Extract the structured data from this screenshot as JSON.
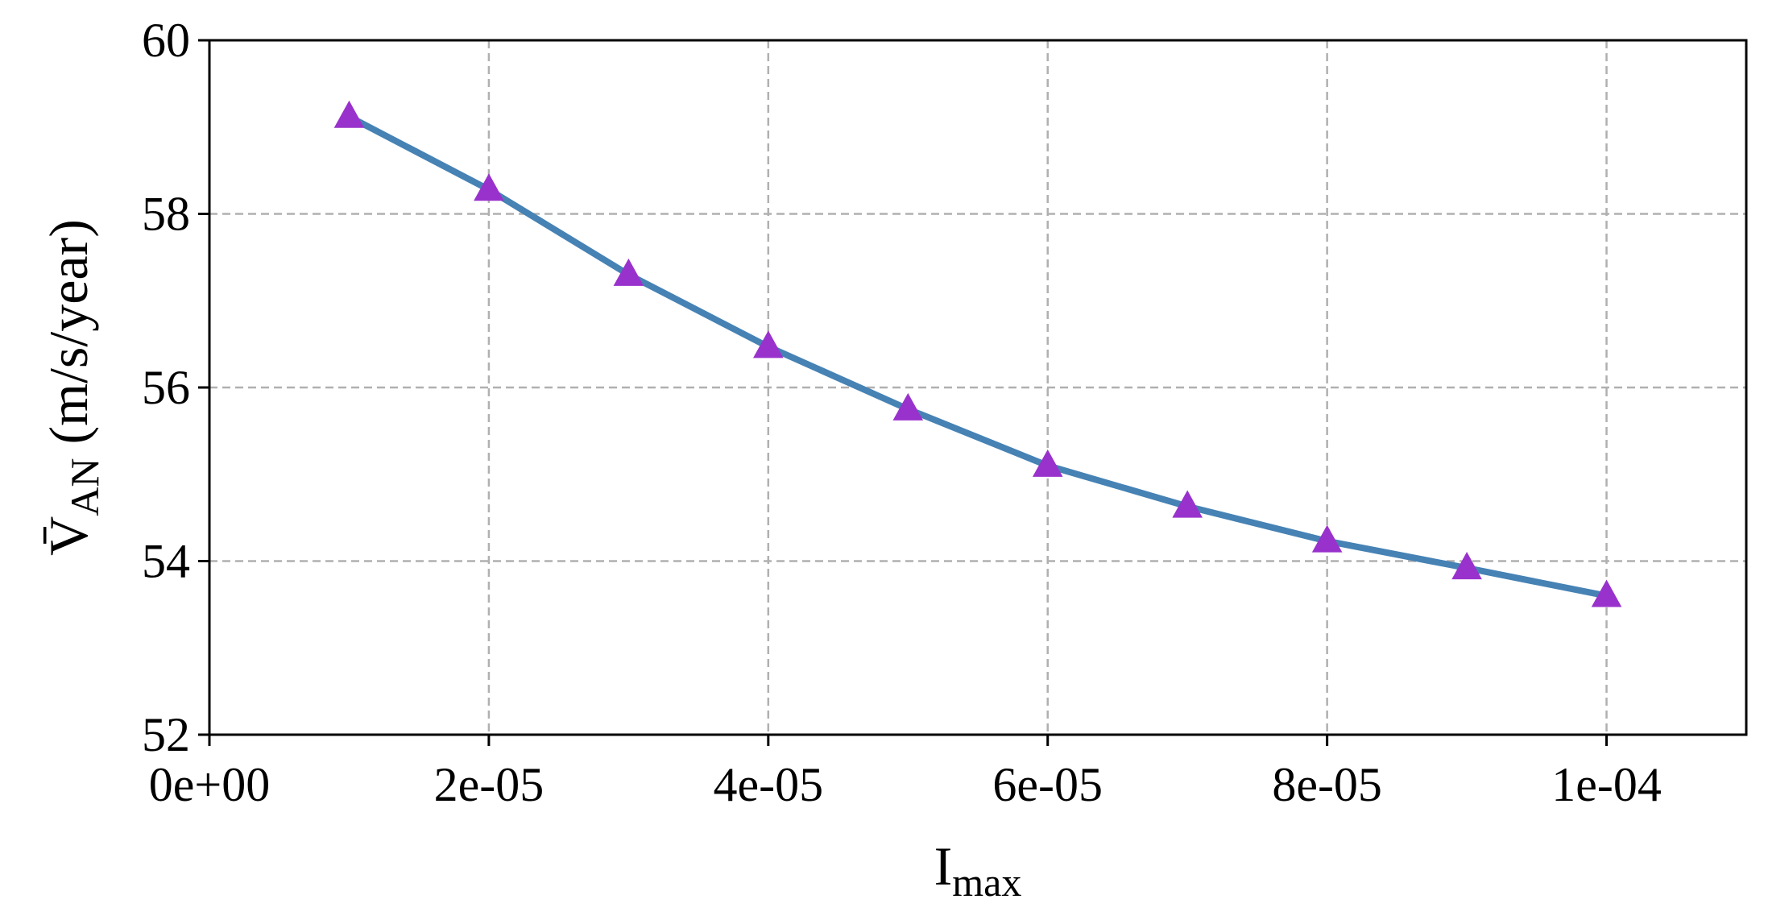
{
  "chart_data": {
    "type": "line",
    "x": [
      1e-05,
      2e-05,
      3e-05,
      4e-05,
      5e-05,
      6e-05,
      7e-05,
      8e-05,
      9e-05,
      0.0001
    ],
    "series": [
      {
        "values": [
          59.12,
          58.28,
          57.3,
          56.47,
          55.75,
          55.1,
          54.63,
          54.23,
          53.92,
          53.6
        ],
        "line_color": "#4682b4",
        "marker": "triangle-up",
        "marker_color": "#9932cc"
      }
    ],
    "xlim": [
      0,
      0.00011
    ],
    "ylim": [
      52,
      60
    ],
    "x_ticks": [
      0,
      2e-05,
      4e-05,
      6e-05,
      8e-05,
      0.0001
    ],
    "x_tick_labels": [
      "0e+00",
      "2e-05",
      "4e-05",
      "6e-05",
      "8e-05",
      "1e-04"
    ],
    "y_ticks": [
      52,
      54,
      56,
      58,
      60
    ],
    "y_tick_labels": [
      "52",
      "54",
      "56",
      "58",
      "60"
    ],
    "xlabel": {
      "main": "I",
      "sub": "max"
    },
    "ylabel": {
      "main": "V̄",
      "sub": "AN",
      "rest": " (m/s/year)"
    },
    "grid": true
  }
}
